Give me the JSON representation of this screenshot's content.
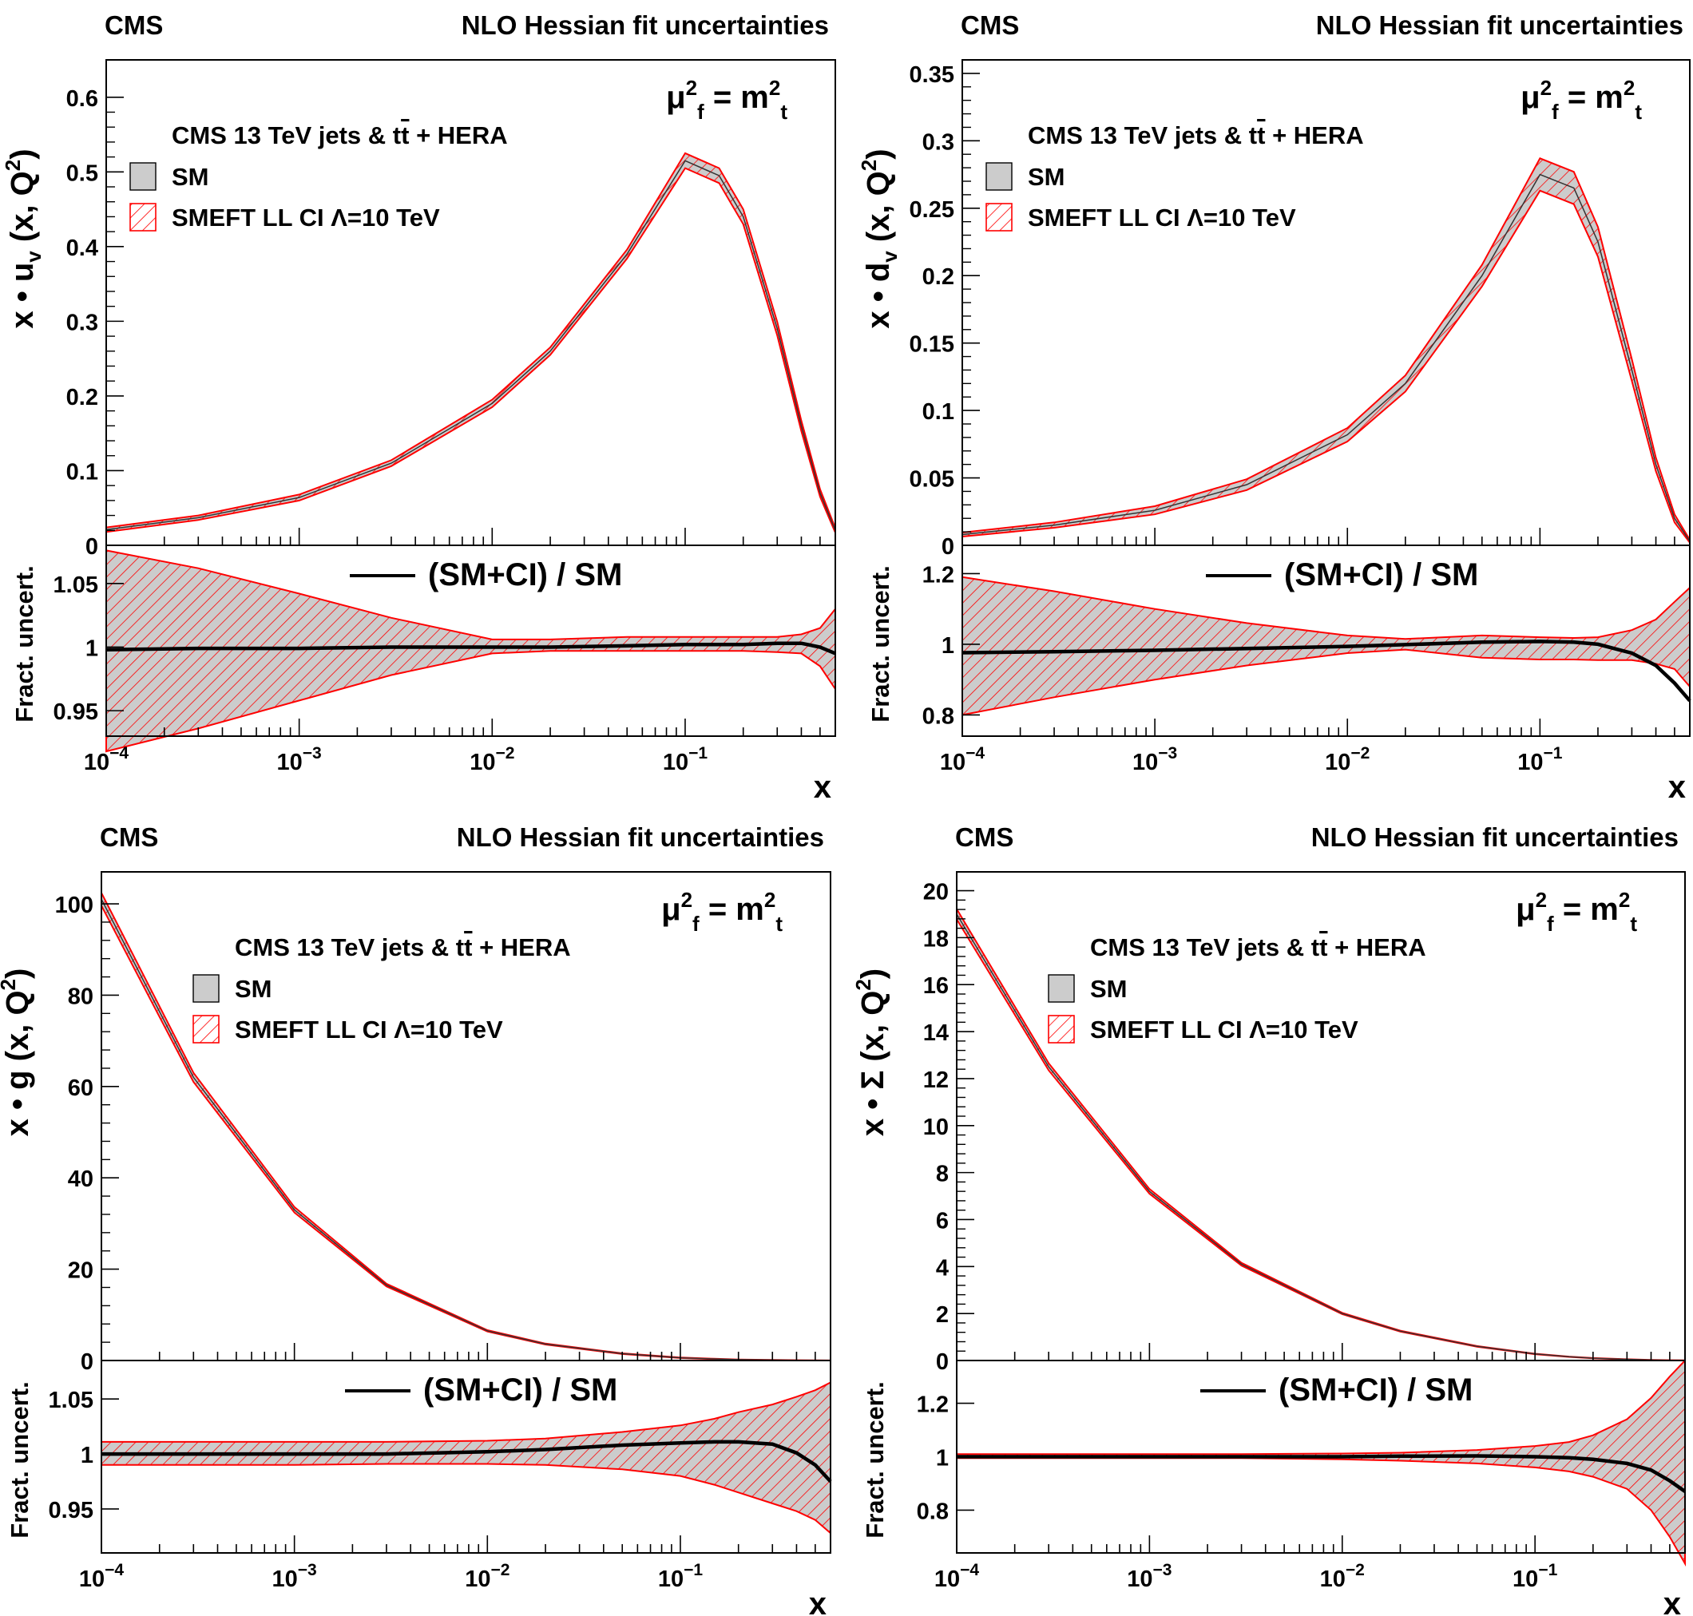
{
  "figure": {
    "experiment_label": "CMS",
    "header_label": "NLO Hessian fit uncertainties",
    "scale_label": {
      "mu": "μ",
      "sub_f": "f",
      "sup_2": "2",
      "eq": " = m",
      "sub_t": "t"
    },
    "legend": {
      "title_prefix": "CMS 13 TeV jets & t",
      "title_tbar": "t",
      "title_suffix": " + HERA",
      "sm_label": "SM",
      "smeft_label": "SMEFT LL CI  Λ=10 TeV"
    },
    "ratio_legend": "(SM+CI) / SM",
    "ratio_ylabel": "Fract. uncert.",
    "x_axis_title": "x",
    "x_tick_labels": [
      {
        "base": "10",
        "exp": "−4"
      },
      {
        "base": "10",
        "exp": "−3"
      },
      {
        "base": "10",
        "exp": "−2"
      },
      {
        "base": "10",
        "exp": "−1"
      }
    ]
  },
  "colors": {
    "band_fill": "#cccccc",
    "band_edge": "#ff0000",
    "hatch": "#ff0000",
    "central": "#000000"
  },
  "chart_data": [
    {
      "type": "area",
      "id": "uv",
      "ylabel": {
        "pre": "x • u",
        "sub": "v",
        "mid": " (x, Q",
        "sup": "2",
        "post": ")"
      },
      "xscale": "log",
      "xlim": [
        0.0001,
        0.6
      ],
      "ylim": [
        0,
        0.65
      ],
      "y_ticks": [
        "0",
        "0.1",
        "0.2",
        "0.3",
        "0.4",
        "0.5",
        "0.6"
      ],
      "x": [
        0.0001,
        0.0003,
        0.001,
        0.003,
        0.01,
        0.02,
        0.05,
        0.1,
        0.15,
        0.2,
        0.3,
        0.4,
        0.5,
        0.6
      ],
      "central": [
        0.021,
        0.037,
        0.064,
        0.11,
        0.19,
        0.26,
        0.39,
        0.515,
        0.495,
        0.44,
        0.29,
        0.16,
        0.07,
        0.02
      ],
      "band_width": [
        0.003,
        0.003,
        0.004,
        0.004,
        0.005,
        0.005,
        0.006,
        0.01,
        0.01,
        0.01,
        0.009,
        0.007,
        0.005,
        0.003
      ],
      "ratio": {
        "ylim": [
          0.93,
          1.08
        ],
        "y_ticks": [
          "0.95",
          "1",
          "1.05"
        ],
        "central": [
          0.998,
          0.999,
          0.999,
          1.0,
          1.0,
          1.0,
          1.001,
          1.002,
          1.002,
          1.002,
          1.003,
          1.003,
          1.0,
          0.995
        ],
        "band_lo": [
          0.918,
          0.936,
          0.958,
          0.978,
          0.995,
          0.997,
          0.997,
          0.997,
          0.997,
          0.997,
          0.996,
          0.995,
          0.985,
          0.967
        ],
        "band_hi": [
          1.076,
          1.062,
          1.042,
          1.023,
          1.006,
          1.006,
          1.008,
          1.008,
          1.008,
          1.008,
          1.008,
          1.01,
          1.015,
          1.03
        ]
      }
    },
    {
      "type": "area",
      "id": "dv",
      "ylabel": {
        "pre": "x • d",
        "sub": "v",
        "mid": " (x, Q",
        "sup": "2",
        "post": ")"
      },
      "xscale": "log",
      "xlim": [
        0.0001,
        0.6
      ],
      "ylim": [
        0,
        0.36
      ],
      "y_ticks": [
        "0",
        "0.05",
        "0.1",
        "0.15",
        "0.2",
        "0.25",
        "0.3",
        "0.35"
      ],
      "x": [
        0.0001,
        0.0003,
        0.001,
        0.003,
        0.01,
        0.02,
        0.05,
        0.1,
        0.15,
        0.2,
        0.3,
        0.4,
        0.5,
        0.6
      ],
      "central": [
        0.008,
        0.015,
        0.026,
        0.045,
        0.082,
        0.12,
        0.2,
        0.275,
        0.265,
        0.225,
        0.13,
        0.06,
        0.02,
        0.003
      ],
      "band_width": [
        0.0015,
        0.002,
        0.003,
        0.004,
        0.005,
        0.006,
        0.008,
        0.012,
        0.012,
        0.011,
        0.008,
        0.005,
        0.003,
        0.001
      ],
      "ratio": {
        "ylim": [
          0.74,
          1.28
        ],
        "y_ticks": [
          "0.8",
          "1",
          "1.2"
        ],
        "central": [
          0.976,
          0.979,
          0.983,
          0.988,
          0.994,
          0.999,
          1.006,
          1.008,
          1.006,
          1.0,
          0.975,
          0.94,
          0.89,
          0.84
        ],
        "band_lo": [
          0.8,
          0.85,
          0.9,
          0.94,
          0.975,
          0.985,
          0.962,
          0.957,
          0.957,
          0.955,
          0.955,
          0.945,
          0.93,
          0.88
        ],
        "band_hi": [
          1.19,
          1.15,
          1.1,
          1.06,
          1.025,
          1.015,
          1.025,
          1.02,
          1.018,
          1.02,
          1.04,
          1.07,
          1.12,
          1.16
        ]
      }
    },
    {
      "type": "area",
      "id": "gluon",
      "ylabel": {
        "pre": "x • g (x, Q",
        "sub": "",
        "mid": "",
        "sup": "2",
        "post": ")"
      },
      "xscale": "log",
      "xlim": [
        0.0001,
        0.6
      ],
      "ylim": [
        0,
        107
      ],
      "y_ticks": [
        "0",
        "20",
        "40",
        "60",
        "80",
        "100"
      ],
      "x": [
        0.0001,
        0.0003,
        0.001,
        0.003,
        0.01,
        0.02,
        0.05,
        0.1,
        0.15,
        0.2,
        0.3,
        0.4,
        0.5,
        0.6
      ],
      "central": [
        101,
        62,
        33,
        16.5,
        6.5,
        3.6,
        1.5,
        0.6,
        0.35,
        0.2,
        0.1,
        0.05,
        0.02,
        0.01
      ],
      "band_width": [
        1.4,
        1.0,
        0.6,
        0.3,
        0.15,
        0.1,
        0.08,
        0.05,
        0.04,
        0.03,
        0.02,
        0.02,
        0.01,
        0.01
      ],
      "ratio": {
        "ylim": [
          0.91,
          1.085
        ],
        "y_ticks": [
          "0.95",
          "1",
          "1.05"
        ],
        "central": [
          1.0,
          1.0,
          1.0,
          1.0,
          1.002,
          1.004,
          1.008,
          1.01,
          1.011,
          1.011,
          1.009,
          1.001,
          0.99,
          0.975
        ],
        "band_lo": [
          0.99,
          0.99,
          0.99,
          0.991,
          0.991,
          0.99,
          0.986,
          0.98,
          0.972,
          0.965,
          0.955,
          0.948,
          0.94,
          0.928
        ],
        "band_hi": [
          1.011,
          1.011,
          1.011,
          1.011,
          1.012,
          1.014,
          1.02,
          1.026,
          1.032,
          1.038,
          1.045,
          1.052,
          1.058,
          1.065
        ]
      }
    },
    {
      "type": "area",
      "id": "sigma",
      "ylabel": {
        "pre": "x • Σ (x, Q",
        "sub": "",
        "mid": "",
        "sup": "2",
        "post": ")"
      },
      "xscale": "log",
      "xlim": [
        0.0001,
        0.6
      ],
      "ylim": [
        0,
        20.8
      ],
      "y_ticks": [
        "0",
        "2",
        "4",
        "6",
        "8",
        "10",
        "12",
        "14",
        "16",
        "18",
        "20"
      ],
      "x": [
        0.0001,
        0.0003,
        0.001,
        0.003,
        0.01,
        0.02,
        0.05,
        0.1,
        0.15,
        0.2,
        0.3,
        0.4,
        0.5,
        0.6
      ],
      "central": [
        19,
        12.5,
        7.2,
        4.1,
        2.0,
        1.25,
        0.6,
        0.28,
        0.16,
        0.1,
        0.05,
        0.02,
        0.01,
        0.005
      ],
      "band_width": [
        0.22,
        0.15,
        0.1,
        0.06,
        0.03,
        0.02,
        0.015,
        0.01,
        0.008,
        0.006,
        0.004,
        0.003,
        0.002,
        0.001
      ],
      "ratio": {
        "ylim": [
          0.64,
          1.36
        ],
        "y_ticks": [
          "0.8",
          "1",
          "1.2"
        ],
        "central": [
          1.0,
          1.0,
          1.0,
          1.0,
          1.0,
          1.002,
          1.003,
          1.0,
          0.996,
          0.99,
          0.975,
          0.95,
          0.91,
          0.87
        ],
        "band_lo": [
          0.995,
          0.995,
          0.995,
          0.995,
          0.99,
          0.985,
          0.975,
          0.96,
          0.945,
          0.925,
          0.88,
          0.8,
          0.7,
          0.6
        ],
        "band_hi": [
          1.01,
          1.01,
          1.01,
          1.01,
          1.012,
          1.015,
          1.025,
          1.04,
          1.055,
          1.08,
          1.14,
          1.22,
          1.3,
          1.36
        ]
      }
    }
  ]
}
